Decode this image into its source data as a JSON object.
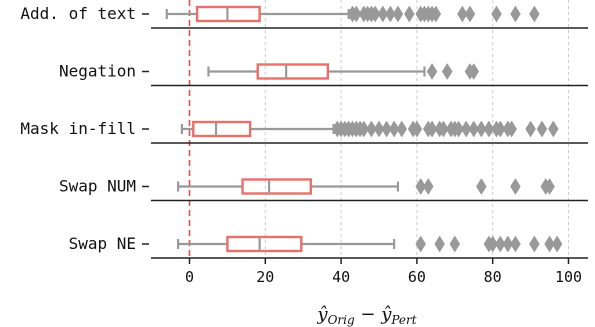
{
  "chart_data": {
    "type": "box",
    "xlabel": {
      "main_left": "ŷ",
      "sub_left": "Orig",
      "minus": " − ",
      "main_right": "ŷ",
      "sub_right": "Pert"
    },
    "xlim": [
      -10,
      103
    ],
    "xticks": [
      0,
      20,
      40,
      60,
      80,
      100
    ],
    "reference_line_x": 0,
    "grid": "vertical dashed at ticks",
    "colors": {
      "box": "#e8706a",
      "whisker": "#999999",
      "flier": "#999999",
      "ref": "#d9534f",
      "axis": "#222222",
      "grid": "#cccccc"
    },
    "categories": [
      "Add. of text",
      "Negation",
      "Mask in-fill",
      "Swap NUM",
      "Swap NE"
    ],
    "boxes": [
      {
        "label": "Add. of text",
        "whislo": -6,
        "q1": 2,
        "median": 10,
        "q3": 18.5,
        "whishi": 42,
        "fliers": [
          43,
          44,
          46,
          47,
          48,
          49,
          51,
          53,
          55,
          58,
          61,
          62,
          63,
          64,
          65,
          72,
          74,
          81,
          86,
          91
        ]
      },
      {
        "label": "Negation",
        "whislo": 5,
        "q1": 18,
        "median": 25.5,
        "q3": 36.5,
        "whishi": 62,
        "fliers": [
          64,
          68,
          74,
          75
        ]
      },
      {
        "label": "Mask in-fill",
        "whislo": -2,
        "q1": 1,
        "median": 7,
        "q3": 16,
        "whishi": 38,
        "fliers": [
          39,
          40,
          41,
          42,
          43,
          44,
          45,
          46,
          48,
          50,
          52,
          54,
          56,
          59,
          60,
          63,
          64,
          66,
          67,
          69,
          70,
          71,
          73,
          75,
          77,
          79,
          81,
          82,
          84,
          85,
          90,
          93,
          96
        ]
      },
      {
        "label": "Swap NUM",
        "whislo": -3,
        "q1": 14,
        "median": 21,
        "q3": 32,
        "whishi": 55,
        "fliers": [
          61,
          63,
          77,
          86,
          94,
          95
        ]
      },
      {
        "label": "Swap NE",
        "whislo": -3,
        "q1": 10,
        "median": 18.5,
        "q3": 29.5,
        "whishi": 54,
        "fliers": [
          61,
          66,
          70,
          79,
          80,
          82,
          84,
          86,
          91,
          95,
          97
        ]
      }
    ]
  }
}
